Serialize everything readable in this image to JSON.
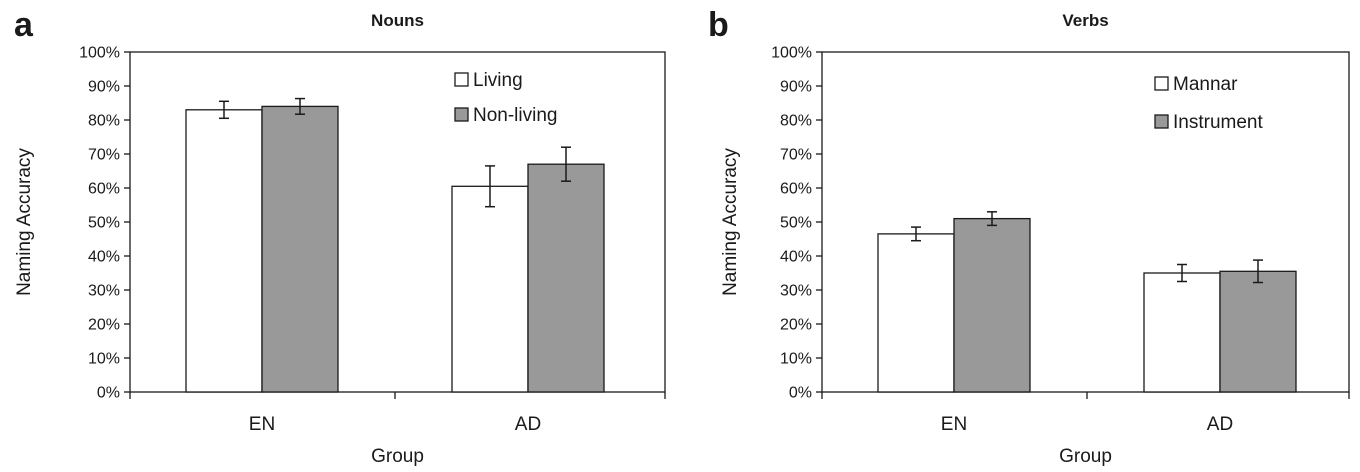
{
  "chart_data": [
    {
      "panel": "a",
      "type": "bar",
      "title": "Nouns",
      "xlabel": "Group",
      "ylabel": "Naming Accuracy",
      "ylim": [
        0,
        100
      ],
      "y_ticks": [
        "0%",
        "10%",
        "20%",
        "30%",
        "40%",
        "50%",
        "60%",
        "70%",
        "80%",
        "90%",
        "100%"
      ],
      "categories": [
        "EN",
        "AD"
      ],
      "legend_position": "top-right",
      "grid": false,
      "series": [
        {
          "name": "Living",
          "color": "#ffffff",
          "values": [
            83,
            60.5
          ],
          "error": [
            2.5,
            6
          ]
        },
        {
          "name": "Non-living",
          "color": "#999999",
          "values": [
            84,
            67
          ],
          "error": [
            2.3,
            5
          ]
        }
      ]
    },
    {
      "panel": "b",
      "type": "bar",
      "title": "Verbs",
      "xlabel": "Group",
      "ylabel": "Naming Accuracy",
      "ylim": [
        0,
        100
      ],
      "y_ticks": [
        "0%",
        "10%",
        "20%",
        "30%",
        "40%",
        "50%",
        "60%",
        "70%",
        "80%",
        "90%",
        "100%"
      ],
      "categories": [
        "EN",
        "AD"
      ],
      "legend_position": "top-right",
      "grid": false,
      "series": [
        {
          "name": "Mannar",
          "color": "#ffffff",
          "values": [
            46.5,
            35
          ],
          "error": [
            2,
            2.5
          ]
        },
        {
          "name": "Instrument",
          "color": "#999999",
          "values": [
            51,
            35.5
          ],
          "error": [
            2,
            3.3
          ]
        }
      ]
    }
  ]
}
